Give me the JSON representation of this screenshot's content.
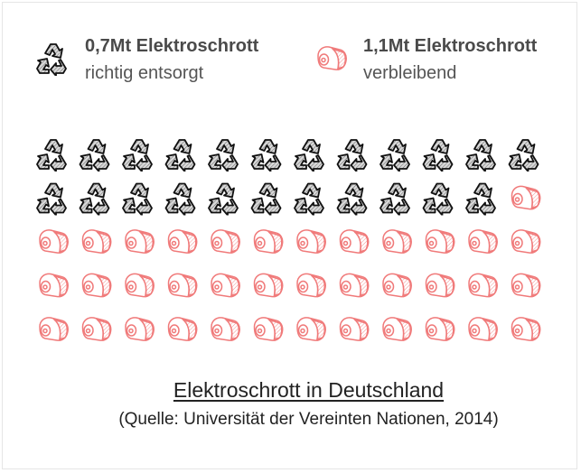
{
  "legend": {
    "recycled": {
      "value_label": "0,7Mt Elektroschrott",
      "description": "richtig entsorgt",
      "icon": "recycle-icon",
      "color": "#3a3a3a"
    },
    "remaining": {
      "value_label": "1,1Mt Elektroschrott",
      "description": "verbleibend",
      "icon": "ham-icon",
      "color": "#f07a7a"
    }
  },
  "chart_data": {
    "type": "pictogram",
    "title": "Elektroschrott in Deutschland",
    "source": "(Quelle: Universität der Vereinten Nationen, 2014)",
    "columns": 12,
    "rows": 5,
    "series": [
      {
        "name": "0,7Mt Elektroschrott richtig entsorgt",
        "value": 0.7,
        "unit": "Mt",
        "icon_count": 23,
        "icon": "recycle-icon",
        "color": "#3a3a3a"
      },
      {
        "name": "1,1Mt Elektroschrott verbleibend",
        "value": 1.1,
        "unit": "Mt",
        "icon_count": 37,
        "icon": "ham-icon",
        "color": "#f07a7a"
      }
    ]
  }
}
